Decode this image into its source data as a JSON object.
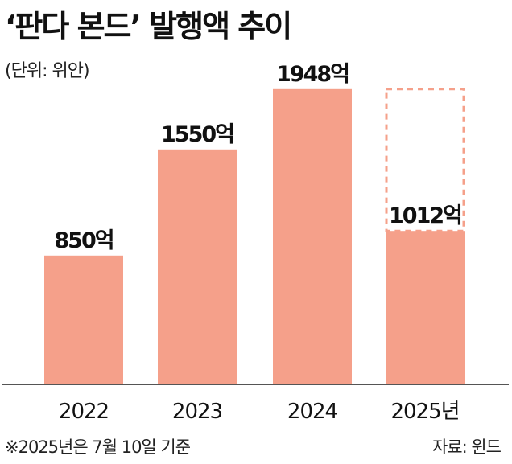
{
  "header": {
    "title": "‘판다 본드’ 발행액 추이",
    "unit": "(단위: 위안)"
  },
  "footer": {
    "note": "※2025년은 7월 10일 기준",
    "source": "자료: 윈드"
  },
  "colors": {
    "bar": "#f5a08a",
    "dashed_outline": "#f5a08a",
    "baseline": "#555555"
  },
  "chart_data": {
    "type": "bar",
    "title": "‘판다 본드’ 발행액 추이",
    "ylabel": "",
    "xlabel": "",
    "unit": "(단위: 위안)",
    "categories": [
      "2022",
      "2023",
      "2024",
      "2025년"
    ],
    "values": [
      850,
      1550,
      1948,
      1012
    ],
    "value_labels": [
      "850억",
      "1550억",
      "1948억",
      "1012억"
    ],
    "ylim": [
      0,
      2000
    ],
    "dashed_outline_value": 1948,
    "dashed_outline_category": "2025년",
    "grid": false
  }
}
